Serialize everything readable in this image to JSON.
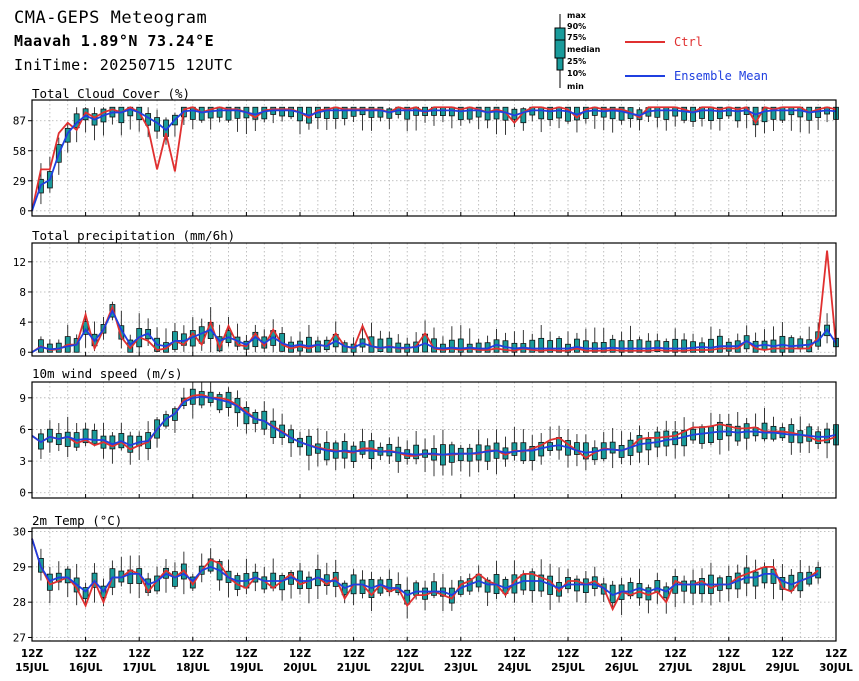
{
  "header": {
    "title": "CMA-GEPS Meteogram",
    "location": "Maavah 1.89°N 73.24°E",
    "init_time": "IniTime: 20250715 12UTC"
  },
  "legend": {
    "box_labels": [
      "max",
      "90%",
      "75%",
      "median",
      "25%",
      "10%",
      "min"
    ],
    "ctrl_label": "Ctrl",
    "mean_label": "Ensemble Mean",
    "colors": {
      "ctrl": "#e03030",
      "mean": "#1f3fe0",
      "box": "#1a9b9b"
    }
  },
  "x_axis": {
    "tick_top": [
      "12Z",
      "12Z",
      "12Z",
      "12Z",
      "12Z",
      "12Z",
      "12Z",
      "12Z",
      "12Z",
      "12Z",
      "12Z",
      "12Z",
      "12Z",
      "12Z",
      "12Z",
      "12Z"
    ],
    "tick_bottom": [
      "15JUL",
      "16JUL",
      "17JUL",
      "18JUL",
      "19JUL",
      "20JUL",
      "21JUL",
      "22JUL",
      "23JUL",
      "24JUL",
      "25JUL",
      "26JUL",
      "27JUL",
      "28JUL",
      "29JUL",
      "30JUL"
    ]
  },
  "chart_data": [
    {
      "type": "line",
      "title": "Total Cloud Cover (%)",
      "yticks": [
        "0",
        "29",
        "58",
        "87"
      ],
      "ylim": [
        -5,
        107
      ],
      "x_step_hours": 6,
      "ctrl": [
        0,
        40,
        40,
        75,
        85,
        78,
        95,
        90,
        95,
        98,
        95,
        100,
        95,
        80,
        40,
        75,
        38,
        98,
        100,
        95,
        98,
        100,
        98,
        98,
        95,
        90,
        97,
        98,
        98,
        98,
        95,
        90,
        97,
        98,
        100,
        98,
        98,
        98,
        98,
        98,
        95,
        100,
        98,
        100,
        95,
        100,
        100,
        100,
        98,
        100,
        98,
        95,
        98,
        95,
        85,
        95,
        100,
        100,
        98,
        100,
        98,
        90,
        98,
        100,
        98,
        98,
        98,
        95,
        90,
        100,
        100,
        100,
        100,
        98,
        95,
        100,
        100,
        98,
        100,
        98,
        100,
        85,
        100,
        98,
        100,
        100,
        100,
        95,
        98,
        100,
        98
      ],
      "mean": [
        0,
        25,
        30,
        55,
        75,
        85,
        92,
        88,
        92,
        95,
        95,
        98,
        95,
        90,
        85,
        78,
        88,
        96,
        97,
        95,
        96,
        97,
        97,
        97,
        95,
        93,
        96,
        97,
        97,
        97,
        95,
        92,
        95,
        97,
        97,
        97,
        97,
        97,
        97,
        97,
        95,
        97,
        97,
        97,
        96,
        97,
        97,
        97,
        96,
        97,
        97,
        95,
        96,
        95,
        92,
        95,
        97,
        97,
        96,
        97,
        96,
        93,
        96,
        97,
        96,
        97,
        96,
        94,
        92,
        96,
        97,
        97,
        97,
        96,
        95,
        97,
        97,
        96,
        97,
        96,
        97,
        93,
        96,
        97,
        97,
        97,
        97,
        95,
        96,
        97,
        96
      ]
    },
    {
      "type": "line",
      "title": "Total precipitation (mm/6h)",
      "yticks": [
        "0",
        "4",
        "8",
        "12"
      ],
      "ylim": [
        -0.5,
        14.5
      ],
      "x_step_hours": 6,
      "ctrl": [
        0,
        0.8,
        0.3,
        0.4,
        1,
        1,
        5,
        0.5,
        3,
        6,
        2,
        0.5,
        2,
        1.5,
        0.3,
        0.5,
        1.5,
        1,
        2.5,
        1,
        4,
        0.5,
        3.5,
        1,
        0.8,
        2.5,
        0.8,
        3,
        1,
        0.5,
        0.8,
        0.5,
        1,
        0.8,
        2.5,
        0.8,
        0.5,
        3.5,
        0.8,
        0.5,
        0.8,
        0.5,
        0.5,
        0.8,
        2.5,
        0.5,
        0.3,
        0.5,
        0.3,
        0.5,
        0.3,
        0.3,
        0.5,
        0.3,
        0.2,
        0.5,
        0.3,
        0.2,
        0.3,
        0.2,
        0.2,
        0.5,
        0.2,
        0.2,
        0.2,
        0.3,
        0.2,
        0.2,
        0.2,
        0.2,
        0.3,
        0.2,
        0.2,
        0.2,
        0.3,
        0.3,
        0.3,
        0.5,
        0.5,
        0.5,
        1.5,
        0.5,
        0.3,
        0.5,
        0.5,
        0.5,
        0.5,
        0.5,
        2,
        13.5,
        1
      ],
      "mean": [
        0,
        0.7,
        0.4,
        0.5,
        0.8,
        1,
        3,
        1.5,
        3,
        5.5,
        3,
        1,
        2,
        2.5,
        1,
        0.8,
        1.5,
        1.5,
        2,
        2.5,
        3,
        1.5,
        2,
        1.5,
        1,
        2,
        1.2,
        2,
        1.2,
        0.8,
        1,
        0.8,
        1,
        0.8,
        1.5,
        0.8,
        0.6,
        1.2,
        0.8,
        0.6,
        0.7,
        0.6,
        0.6,
        0.7,
        1.2,
        0.6,
        0.5,
        0.6,
        0.5,
        0.6,
        0.5,
        0.5,
        1,
        0.7,
        0.5,
        0.6,
        0.5,
        0.5,
        0.5,
        0.5,
        0.5,
        0.7,
        0.5,
        0.5,
        0.5,
        0.6,
        0.5,
        0.5,
        0.5,
        0.5,
        0.6,
        0.5,
        0.5,
        0.5,
        0.6,
        0.7,
        0.6,
        0.8,
        0.8,
        0.8,
        1.5,
        0.8,
        1,
        0.8,
        1,
        0.8,
        0.9,
        1,
        1.5,
        3,
        1.2
      ]
    },
    {
      "type": "line",
      "title": "10m wind speed (m/s)",
      "yticks": [
        "0",
        "3",
        "6",
        "9"
      ],
      "ylim": [
        -0.5,
        10.5
      ],
      "x_step_hours": 6,
      "ctrl": [
        5.4,
        4.8,
        5.3,
        5.1,
        5.3,
        4.7,
        5,
        4.5,
        4.8,
        4.4,
        4.8,
        4.1,
        4.5,
        4.8,
        6,
        7,
        7.5,
        8.8,
        9.2,
        9.3,
        9,
        9,
        8.8,
        8.3,
        7.7,
        7,
        6.8,
        6.3,
        5.8,
        5.2,
        4.8,
        4.5,
        4.3,
        4.1,
        4,
        3.9,
        3.8,
        4.2,
        4.2,
        3.9,
        4,
        3.8,
        3.5,
        3.5,
        3.7,
        3.6,
        3.6,
        3.6,
        3.7,
        3.7,
        3.7,
        4,
        4,
        3.6,
        4,
        3.9,
        4.2,
        4.5,
        5,
        5.2,
        4.6,
        4,
        3.3,
        3.8,
        4.2,
        4.1,
        4,
        4.3,
        5.1,
        5.2,
        5.2,
        5.3,
        5.4,
        5.8,
        6.2,
        6.2,
        6.3,
        6.5,
        6.3,
        6.1,
        6.1,
        6.2,
        5.8,
        5.8,
        5.8,
        5.7,
        5.5,
        5.3,
        4.9,
        5,
        5.3
      ],
      "mean": [
        5.4,
        4.8,
        5.3,
        5.1,
        5.3,
        5,
        5.1,
        5,
        5,
        4.6,
        4.9,
        4.5,
        4.8,
        4.9,
        6,
        7,
        7.5,
        8.6,
        9,
        9.1,
        9,
        8.8,
        8.6,
        8.2,
        7.5,
        7,
        6.8,
        6.2,
        5.7,
        5.2,
        4.8,
        4.5,
        4.2,
        4,
        3.9,
        4,
        3.9,
        4,
        4,
        3.9,
        3.9,
        3.8,
        3.7,
        3.6,
        3.7,
        3.7,
        3.6,
        3.7,
        3.7,
        3.7,
        3.8,
        3.9,
        4,
        3.8,
        3.9,
        4,
        4,
        4.2,
        4.4,
        4.5,
        4.3,
        4,
        3.8,
        3.9,
        4.1,
        4.1,
        4,
        4.3,
        4.6,
        4.7,
        4.8,
        5,
        5.1,
        5.3,
        5.5,
        5.6,
        5.7,
        5.8,
        5.8,
        5.7,
        5.8,
        5.8,
        5.7,
        5.7,
        5.6,
        5.5,
        5.5,
        5.4,
        5.3,
        5.3,
        5.5
      ]
    },
    {
      "type": "line",
      "title": "2m Temp (°C)",
      "yticks": [
        "27",
        "28",
        "29",
        "30"
      ],
      "ylim": [
        26.9,
        30.1
      ],
      "x_step_hours": 6,
      "ctrl": [
        29.8,
        29,
        28.5,
        28.6,
        28.7,
        28.4,
        27.9,
        28.6,
        28,
        28.7,
        28.7,
        28.9,
        28.8,
        28.3,
        28.6,
        28.9,
        28.7,
        28.9,
        28.5,
        28.9,
        29.2,
        29.1,
        28.7,
        28.5,
        28.4,
        28.7,
        28.6,
        28.4,
        28.6,
        28.8,
        28.5,
        28.6,
        28.7,
        28.5,
        28.7,
        28.1,
        28.5,
        28.5,
        28.2,
        28.5,
        28.3,
        28.4,
        27.9,
        28.2,
        28.2,
        28.3,
        28.2,
        28.1,
        28.5,
        28.6,
        28.8,
        28.6,
        28.5,
        28.2,
        28.6,
        28.8,
        28.8,
        28.7,
        28.6,
        28.3,
        28.6,
        28.6,
        28.5,
        28.6,
        28.4,
        27.8,
        28.3,
        28.2,
        28.3,
        28.2,
        28.3,
        28.0,
        28.6,
        28.5,
        28.5,
        28.6,
        28.4,
        28.5,
        28.5,
        28.7,
        28.8,
        28.9,
        29,
        29,
        28.4,
        28.3,
        28.6,
        28.7,
        28.9
      ],
      "mean": [
        29.8,
        29,
        28.6,
        28.7,
        28.7,
        28.5,
        28.3,
        28.6,
        28.3,
        28.7,
        28.7,
        28.8,
        28.8,
        28.5,
        28.6,
        28.8,
        28.7,
        28.8,
        28.6,
        28.9,
        29,
        28.9,
        28.7,
        28.6,
        28.6,
        28.7,
        28.6,
        28.6,
        28.6,
        28.7,
        28.6,
        28.6,
        28.7,
        28.6,
        28.6,
        28.4,
        28.5,
        28.5,
        28.4,
        28.5,
        28.4,
        28.4,
        28.2,
        28.3,
        28.3,
        28.3,
        28.3,
        28.2,
        28.4,
        28.5,
        28.6,
        28.5,
        28.5,
        28.4,
        28.5,
        28.6,
        28.6,
        28.6,
        28.5,
        28.4,
        28.5,
        28.5,
        28.5,
        28.5,
        28.4,
        28.2,
        28.3,
        28.3,
        28.4,
        28.3,
        28.4,
        28.3,
        28.5,
        28.5,
        28.5,
        28.5,
        28.5,
        28.5,
        28.5,
        28.6,
        28.7,
        28.7,
        28.8,
        28.8,
        28.6,
        28.5,
        28.6,
        28.7,
        28.8
      ]
    }
  ]
}
